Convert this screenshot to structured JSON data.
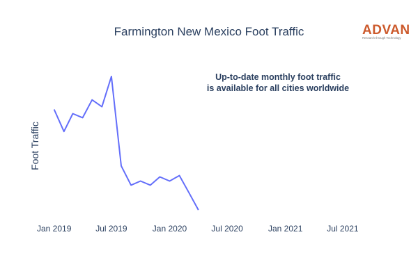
{
  "logo": {
    "name": "ADVAN",
    "tagline": "Research through Technology",
    "color": "#cc5a2c"
  },
  "annotation": {
    "line1": "Up-to-date monthly foot traffic",
    "line2": "is available for all cities worldwide"
  },
  "chart_data": {
    "type": "line",
    "title": "Farmington New Mexico Foot Traffic",
    "xlabel": "",
    "ylabel": "Foot Traffic",
    "y_tick_labels_shown": false,
    "grid": false,
    "line_color": "#636efa",
    "xlim": [
      "2018-12-15",
      "2021-10-15"
    ],
    "ylim": [
      0,
      1
    ],
    "x_ticks": [
      {
        "date": "2019-01-01",
        "label": "Jan 2019"
      },
      {
        "date": "2019-07-01",
        "label": "Jul 2019"
      },
      {
        "date": "2020-01-01",
        "label": "Jan 2020"
      },
      {
        "date": "2020-07-01",
        "label": "Jul 2020"
      },
      {
        "date": "2021-01-01",
        "label": "Jan 2021"
      },
      {
        "date": "2021-07-01",
        "label": "Jul 2021"
      }
    ],
    "series": [
      {
        "x": [
          "2019-01-01",
          "2019-02-01",
          "2019-03-01",
          "2019-04-01",
          "2019-05-01",
          "2019-06-01",
          "2019-07-01",
          "2019-08-01",
          "2019-09-01",
          "2019-10-01",
          "2019-11-01",
          "2019-12-01",
          "2020-01-01",
          "2020-02-01",
          "2020-03-01",
          "2020-04-01"
        ],
        "y": [
          0.76,
          0.6,
          0.73,
          0.7,
          0.83,
          0.78,
          1.0,
          0.35,
          0.21,
          0.24,
          0.21,
          0.27,
          0.24,
          0.28,
          0.16,
          0.03
        ]
      }
    ]
  }
}
